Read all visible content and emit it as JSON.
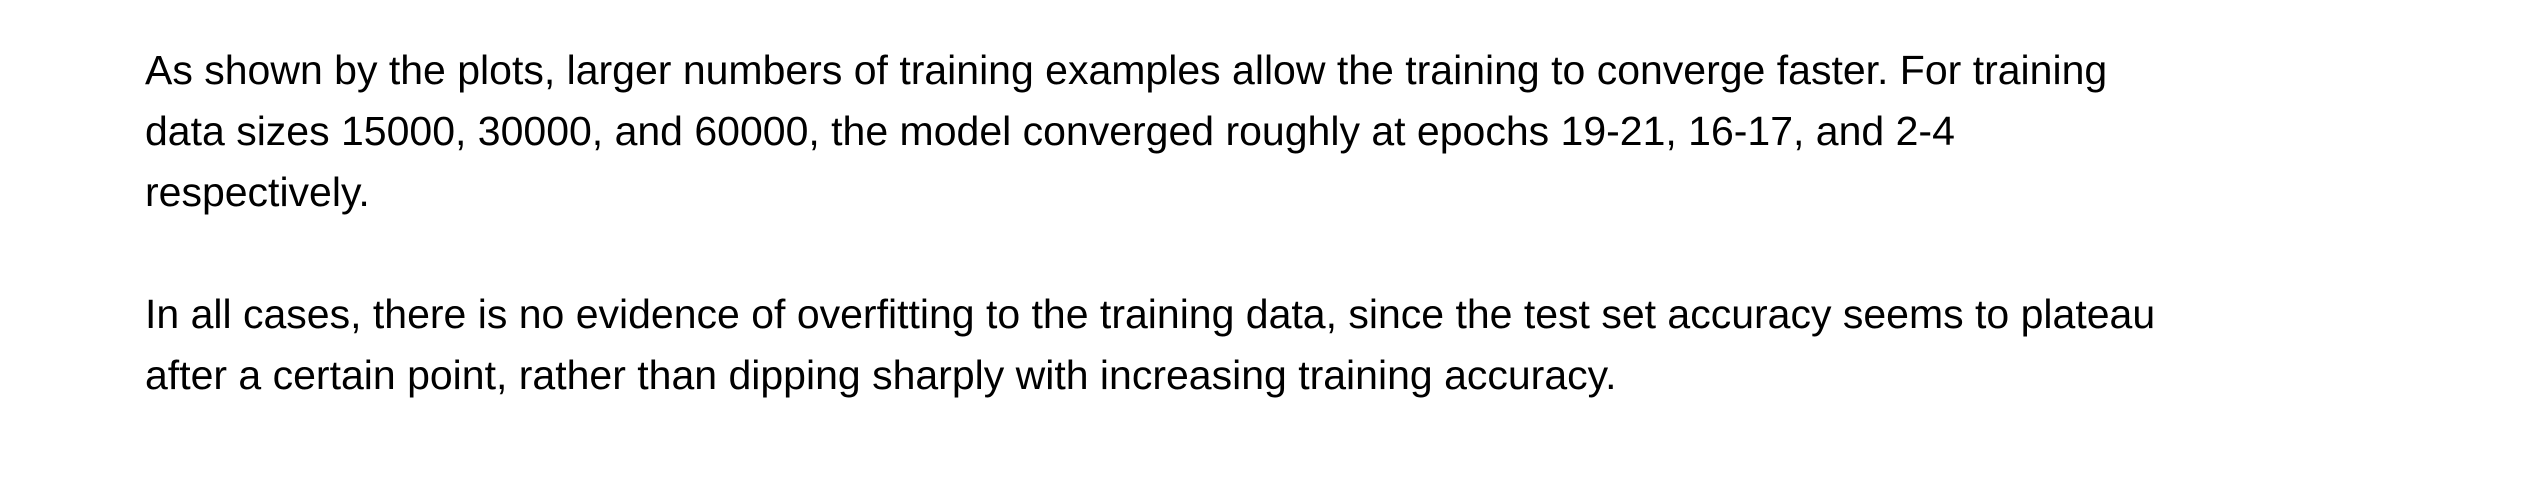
{
  "document": {
    "paragraphs": [
      "As shown by the plots, larger numbers of training examples allow the training to converge faster. For training\ndata sizes 15000, 30000, and 60000, the model converged roughly at epochs 19-21, 16-17, and 2-4\nrespectively.",
      "In all cases, there is no evidence of overfitting to the training data, since the test set accuracy seems to plateau\nafter a certain point, rather than dipping sharply with increasing training accuracy."
    ]
  }
}
